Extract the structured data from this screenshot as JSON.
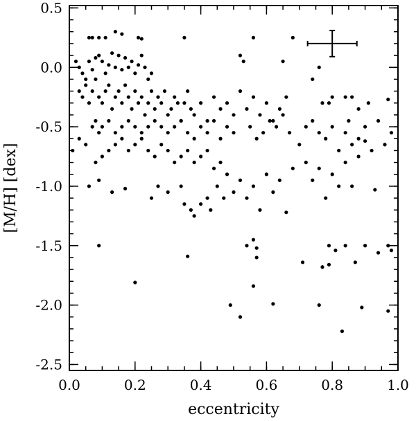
{
  "chart_data": {
    "type": "scatter",
    "title": "",
    "xlabel": "eccentricity",
    "ylabel": "[M/H] [dex]",
    "xlim": [
      0.0,
      1.0
    ],
    "ylim": [
      -2.55,
      0.52
    ],
    "x_ticks": [
      0.0,
      0.2,
      0.4,
      0.6,
      0.8,
      1.0
    ],
    "x_tick_labels": [
      "0.0",
      "0.2",
      "0.4",
      "0.6",
      "0.8",
      "1.0"
    ],
    "y_ticks": [
      -2.5,
      -2.0,
      -1.5,
      -1.0,
      -0.5,
      0.0,
      0.5
    ],
    "y_tick_labels": [
      "-2.5",
      "-2.0",
      "-1.5",
      "-1.0",
      "-0.5",
      "0.0",
      "0.5"
    ],
    "x_minor_step": 0.05,
    "y_minor_step": 0.1,
    "grid": false,
    "marker_color": "#000000",
    "error_bar": {
      "x": 0.8,
      "y": 0.2,
      "x_err": 0.075,
      "y_err": 0.11
    },
    "series": [
      {
        "points": [
          [
            0.06,
            0.25
          ],
          [
            0.07,
            0.25
          ],
          [
            0.09,
            0.25
          ],
          [
            0.11,
            0.25
          ],
          [
            0.14,
            0.3
          ],
          [
            0.16,
            0.28
          ],
          [
            0.21,
            0.25
          ],
          [
            0.22,
            0.24
          ],
          [
            0.35,
            0.25
          ],
          [
            0.56,
            0.25
          ],
          [
            0.68,
            0.25
          ],
          [
            0.52,
            0.1
          ],
          [
            0.53,
            0.05
          ],
          [
            0.76,
            0.0
          ],
          [
            0.74,
            -0.1
          ],
          [
            0.65,
            0.05
          ],
          [
            0.02,
            0.05
          ],
          [
            0.03,
            0.0
          ],
          [
            0.04,
            -0.05
          ],
          [
            0.05,
            -0.1
          ],
          [
            0.06,
            0.05
          ],
          [
            0.07,
            -0.02
          ],
          [
            0.08,
            0.08
          ],
          [
            0.09,
            0.1
          ],
          [
            0.1,
            0.05
          ],
          [
            0.11,
            -0.05
          ],
          [
            0.12,
            0.02
          ],
          [
            0.13,
            0.12
          ],
          [
            0.14,
            0.0
          ],
          [
            0.15,
            0.1
          ],
          [
            0.16,
            -0.02
          ],
          [
            0.17,
            0.08
          ],
          [
            0.18,
            0.0
          ],
          [
            0.19,
            0.05
          ],
          [
            0.2,
            -0.05
          ],
          [
            0.21,
            0.02
          ],
          [
            0.22,
            0.1
          ],
          [
            0.23,
            0.0
          ],
          [
            0.24,
            -0.1
          ],
          [
            0.25,
            -0.05
          ],
          [
            0.03,
            -0.2
          ],
          [
            0.04,
            -0.25
          ],
          [
            0.05,
            -0.15
          ],
          [
            0.06,
            -0.3
          ],
          [
            0.07,
            -0.2
          ],
          [
            0.08,
            -0.1
          ],
          [
            0.09,
            -0.25
          ],
          [
            0.1,
            -0.3
          ],
          [
            0.11,
            -0.2
          ],
          [
            0.12,
            -0.15
          ],
          [
            0.13,
            -0.35
          ],
          [
            0.14,
            -0.25
          ],
          [
            0.15,
            -0.2
          ],
          [
            0.16,
            -0.3
          ],
          [
            0.17,
            -0.15
          ],
          [
            0.18,
            -0.25
          ],
          [
            0.19,
            -0.35
          ],
          [
            0.2,
            -0.2
          ],
          [
            0.21,
            -0.3
          ],
          [
            0.22,
            -0.25
          ],
          [
            0.23,
            -0.4
          ],
          [
            0.24,
            -0.3
          ],
          [
            0.25,
            -0.2
          ],
          [
            0.26,
            -0.35
          ],
          [
            0.27,
            -0.25
          ],
          [
            0.28,
            -0.3
          ],
          [
            0.29,
            -0.2
          ],
          [
            0.3,
            -0.4
          ],
          [
            0.31,
            -0.35
          ],
          [
            0.32,
            -0.25
          ],
          [
            0.33,
            -0.3
          ],
          [
            0.34,
            -0.45
          ],
          [
            0.35,
            -0.3
          ],
          [
            0.36,
            -0.2
          ],
          [
            0.37,
            -0.35
          ],
          [
            0.38,
            -0.4
          ],
          [
            0.4,
            -0.3
          ],
          [
            0.42,
            -0.45
          ],
          [
            0.44,
            -0.25
          ],
          [
            0.46,
            -0.35
          ],
          [
            0.48,
            -0.3
          ],
          [
            0.5,
            -0.4
          ],
          [
            0.52,
            -0.2
          ],
          [
            0.54,
            -0.35
          ],
          [
            0.56,
            -0.25
          ],
          [
            0.58,
            -0.4
          ],
          [
            0.6,
            -0.3
          ],
          [
            0.62,
            -0.45
          ],
          [
            0.64,
            -0.35
          ],
          [
            0.66,
            -0.25
          ],
          [
            0.07,
            -0.5
          ],
          [
            0.08,
            -0.45
          ],
          [
            0.09,
            -0.55
          ],
          [
            0.1,
            -0.5
          ],
          [
            0.12,
            -0.45
          ],
          [
            0.14,
            -0.55
          ],
          [
            0.16,
            -0.5
          ],
          [
            0.18,
            -0.45
          ],
          [
            0.2,
            -0.5
          ],
          [
            0.22,
            -0.55
          ],
          [
            0.24,
            -0.5
          ],
          [
            0.26,
            -0.45
          ],
          [
            0.28,
            -0.5
          ],
          [
            0.3,
            -0.55
          ],
          [
            0.32,
            -0.5
          ],
          [
            0.34,
            -0.45
          ],
          [
            0.36,
            -0.55
          ],
          [
            0.38,
            -0.6
          ],
          [
            0.4,
            -0.5
          ],
          [
            0.42,
            -0.55
          ],
          [
            0.44,
            -0.45
          ],
          [
            0.46,
            -0.6
          ],
          [
            0.48,
            -0.5
          ],
          [
            0.5,
            -0.55
          ],
          [
            0.01,
            -0.7
          ],
          [
            0.03,
            -0.6
          ],
          [
            0.05,
            -0.65
          ],
          [
            0.08,
            -0.8
          ],
          [
            0.1,
            -0.75
          ],
          [
            0.12,
            -0.7
          ],
          [
            0.14,
            -0.65
          ],
          [
            0.16,
            -0.6
          ],
          [
            0.18,
            -0.7
          ],
          [
            0.2,
            -0.65
          ],
          [
            0.22,
            -0.6
          ],
          [
            0.24,
            -0.7
          ],
          [
            0.26,
            -0.75
          ],
          [
            0.28,
            -0.65
          ],
          [
            0.3,
            -0.7
          ],
          [
            0.32,
            -0.8
          ],
          [
            0.34,
            -0.75
          ],
          [
            0.36,
            -0.7
          ],
          [
            0.38,
            -0.8
          ],
          [
            0.4,
            -0.75
          ],
          [
            0.42,
            -0.7
          ],
          [
            0.44,
            -0.85
          ],
          [
            0.46,
            -0.8
          ],
          [
            0.48,
            -0.9
          ],
          [
            0.06,
            -1.0
          ],
          [
            0.09,
            -0.95
          ],
          [
            0.13,
            -1.05
          ],
          [
            0.17,
            -1.02
          ],
          [
            0.25,
            -1.1
          ],
          [
            0.27,
            -1.0
          ],
          [
            0.3,
            -1.05
          ],
          [
            0.34,
            -1.0
          ],
          [
            0.35,
            -1.15
          ],
          [
            0.37,
            -1.2
          ],
          [
            0.38,
            -1.25
          ],
          [
            0.4,
            -1.15
          ],
          [
            0.42,
            -1.1
          ],
          [
            0.43,
            -1.2
          ],
          [
            0.45,
            -1.0
          ],
          [
            0.47,
            -1.1
          ],
          [
            0.5,
            -1.05
          ],
          [
            0.52,
            -0.95
          ],
          [
            0.54,
            -1.1
          ],
          [
            0.56,
            -1.0
          ],
          [
            0.58,
            -1.2
          ],
          [
            0.6,
            -0.9
          ],
          [
            0.62,
            -1.05
          ],
          [
            0.64,
            -0.95
          ],
          [
            0.66,
            -1.22
          ],
          [
            0.68,
            -0.85
          ],
          [
            0.72,
            -0.8
          ],
          [
            0.74,
            -0.95
          ],
          [
            0.76,
            -0.85
          ],
          [
            0.78,
            -1.1
          ],
          [
            0.8,
            -0.9
          ],
          [
            0.82,
            -1.0
          ],
          [
            0.84,
            -0.8
          ],
          [
            0.86,
            -1.0
          ],
          [
            0.88,
            -0.75
          ],
          [
            0.7,
            -0.65
          ],
          [
            0.72,
            -0.5
          ],
          [
            0.74,
            -0.45
          ],
          [
            0.76,
            -0.55
          ],
          [
            0.78,
            -0.6
          ],
          [
            0.8,
            -0.5
          ],
          [
            0.82,
            -0.7
          ],
          [
            0.84,
            -0.55
          ],
          [
            0.86,
            -0.65
          ],
          [
            0.88,
            -0.6
          ],
          [
            0.9,
            -0.5
          ],
          [
            0.92,
            -0.7
          ],
          [
            0.94,
            -0.45
          ],
          [
            0.96,
            -0.65
          ],
          [
            0.98,
            -0.55
          ],
          [
            0.77,
            -0.3
          ],
          [
            0.8,
            -0.25
          ],
          [
            0.84,
            -0.25
          ],
          [
            0.86,
            -0.25
          ],
          [
            0.88,
            -0.35
          ],
          [
            0.91,
            -0.3
          ],
          [
            0.97,
            -0.27
          ],
          [
            0.55,
            -0.5
          ],
          [
            0.57,
            -0.6
          ],
          [
            0.59,
            -0.55
          ],
          [
            0.61,
            -0.45
          ],
          [
            0.63,
            -0.5
          ],
          [
            0.65,
            -0.4
          ],
          [
            0.67,
            -0.55
          ],
          [
            0.09,
            -1.5
          ],
          [
            0.2,
            -1.81
          ],
          [
            0.36,
            -1.59
          ],
          [
            0.49,
            -2.0
          ],
          [
            0.52,
            -2.1
          ],
          [
            0.54,
            -1.5
          ],
          [
            0.56,
            -1.45
          ],
          [
            0.57,
            -1.52
          ],
          [
            0.57,
            -1.6
          ],
          [
            0.56,
            -1.84
          ],
          [
            0.62,
            -1.99
          ],
          [
            0.71,
            -1.64
          ],
          [
            0.76,
            -2.0
          ],
          [
            0.77,
            -1.68
          ],
          [
            0.79,
            -1.66
          ],
          [
            0.79,
            -1.5
          ],
          [
            0.81,
            -1.54
          ],
          [
            0.83,
            -2.22
          ],
          [
            0.84,
            -1.5
          ],
          [
            0.87,
            -1.64
          ],
          [
            0.89,
            -2.02
          ],
          [
            0.9,
            -1.5
          ],
          [
            0.94,
            -1.56
          ],
          [
            0.97,
            -2.05
          ],
          [
            0.98,
            -1.54
          ],
          [
            0.97,
            -1.5
          ],
          [
            0.93,
            -1.03
          ],
          [
            0.9,
            -0.62
          ],
          [
            0.85,
            -0.45
          ],
          [
            0.79,
            -0.3
          ]
        ]
      }
    ]
  }
}
